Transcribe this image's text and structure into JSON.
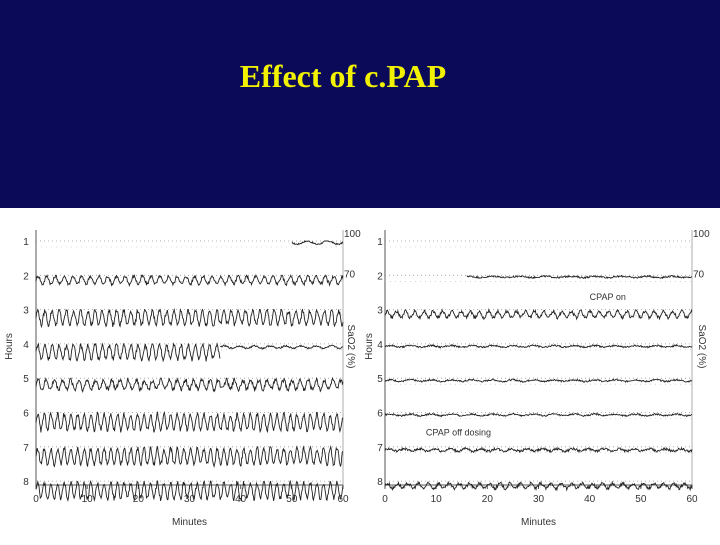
{
  "slide": {
    "title": "Effect of c.PAP"
  },
  "chart_data": [
    {
      "type": "line",
      "panel": "untreated",
      "xlabel": "Minutes",
      "ylabel": "Hours",
      "y2label": "SaO2 (%)",
      "x_ticks": [
        0,
        10,
        20,
        30,
        40,
        50,
        60
      ],
      "xlim": [
        0,
        60
      ],
      "row_labels": [
        "1",
        "2",
        "3",
        "4",
        "5",
        "6",
        "7",
        "8"
      ],
      "scale_labels": [
        "100",
        "70"
      ],
      "annotations": [],
      "series": [
        {
          "row": 1,
          "baseline": 98,
          "amplitude": 2,
          "period": 4,
          "noise": 1,
          "start": 50,
          "end": 60
        },
        {
          "row": 2,
          "baseline": 94,
          "amplitude": 5,
          "period": 1.7,
          "noise": 2,
          "start": 0,
          "end": 60
        },
        {
          "row": 3,
          "baseline": 90,
          "amplitude": 9,
          "period": 1.4,
          "noise": 3,
          "start": 0,
          "end": 60
        },
        {
          "row": 4,
          "baseline": 90,
          "amplitude": 9,
          "period": 1.4,
          "noise": 3,
          "start": 0,
          "end": 36
        },
        {
          "row": 4,
          "baseline": 96,
          "amplitude": 1.5,
          "period": 3,
          "noise": 1,
          "start": 36,
          "end": 60
        },
        {
          "row": 5,
          "baseline": 92,
          "amplitude": 6,
          "period": 1.6,
          "noise": 3,
          "start": 0,
          "end": 60
        },
        {
          "row": 6,
          "baseline": 88,
          "amplitude": 10,
          "period": 1.3,
          "noise": 3,
          "start": 0,
          "end": 60
        },
        {
          "row": 7,
          "baseline": 88,
          "amplitude": 10,
          "period": 1.3,
          "noise": 3,
          "start": 0,
          "end": 60
        },
        {
          "row": 8,
          "baseline": 88,
          "amplitude": 10,
          "period": 1.3,
          "noise": 3,
          "start": 0,
          "end": 60
        }
      ]
    },
    {
      "type": "line",
      "panel": "cpap",
      "xlabel": "Minutes",
      "ylabel": "Hours",
      "y2label": "SaO2 (%)",
      "x_ticks": [
        0,
        10,
        20,
        30,
        40,
        50,
        60
      ],
      "xlim": [
        0,
        60
      ],
      "row_labels": [
        "1",
        "2",
        "3",
        "4",
        "5",
        "6",
        "7",
        "8"
      ],
      "scale_labels": [
        "100",
        "70"
      ],
      "annotations": [
        {
          "text": "CPAP on",
          "minute": 40,
          "row": 2.6
        },
        {
          "text": "CPAP off dosing",
          "minute": 8,
          "row": 6.55
        }
      ],
      "series": [
        {
          "row": 2,
          "baseline": 98,
          "amplitude": 0.8,
          "period": 5,
          "noise": 1,
          "start": 16,
          "end": 60
        },
        {
          "row": 3,
          "baseline": 94,
          "amplitude": 4,
          "period": 1.8,
          "noise": 2,
          "start": 0,
          "end": 60
        },
        {
          "row": 4,
          "baseline": 97,
          "amplitude": 1,
          "period": 4,
          "noise": 1,
          "start": 0,
          "end": 60
        },
        {
          "row": 5,
          "baseline": 97,
          "amplitude": 1,
          "period": 4,
          "noise": 1,
          "start": 0,
          "end": 60
        },
        {
          "row": 6,
          "baseline": 97,
          "amplitude": 1,
          "period": 4,
          "noise": 1,
          "start": 0,
          "end": 60
        },
        {
          "row": 7,
          "baseline": 96,
          "amplitude": 1.5,
          "period": 3,
          "noise": 1.5,
          "start": 0,
          "end": 60
        },
        {
          "row": 8,
          "baseline": 94,
          "amplitude": 3,
          "period": 2,
          "noise": 2,
          "start": 0,
          "end": 60
        }
      ]
    }
  ]
}
